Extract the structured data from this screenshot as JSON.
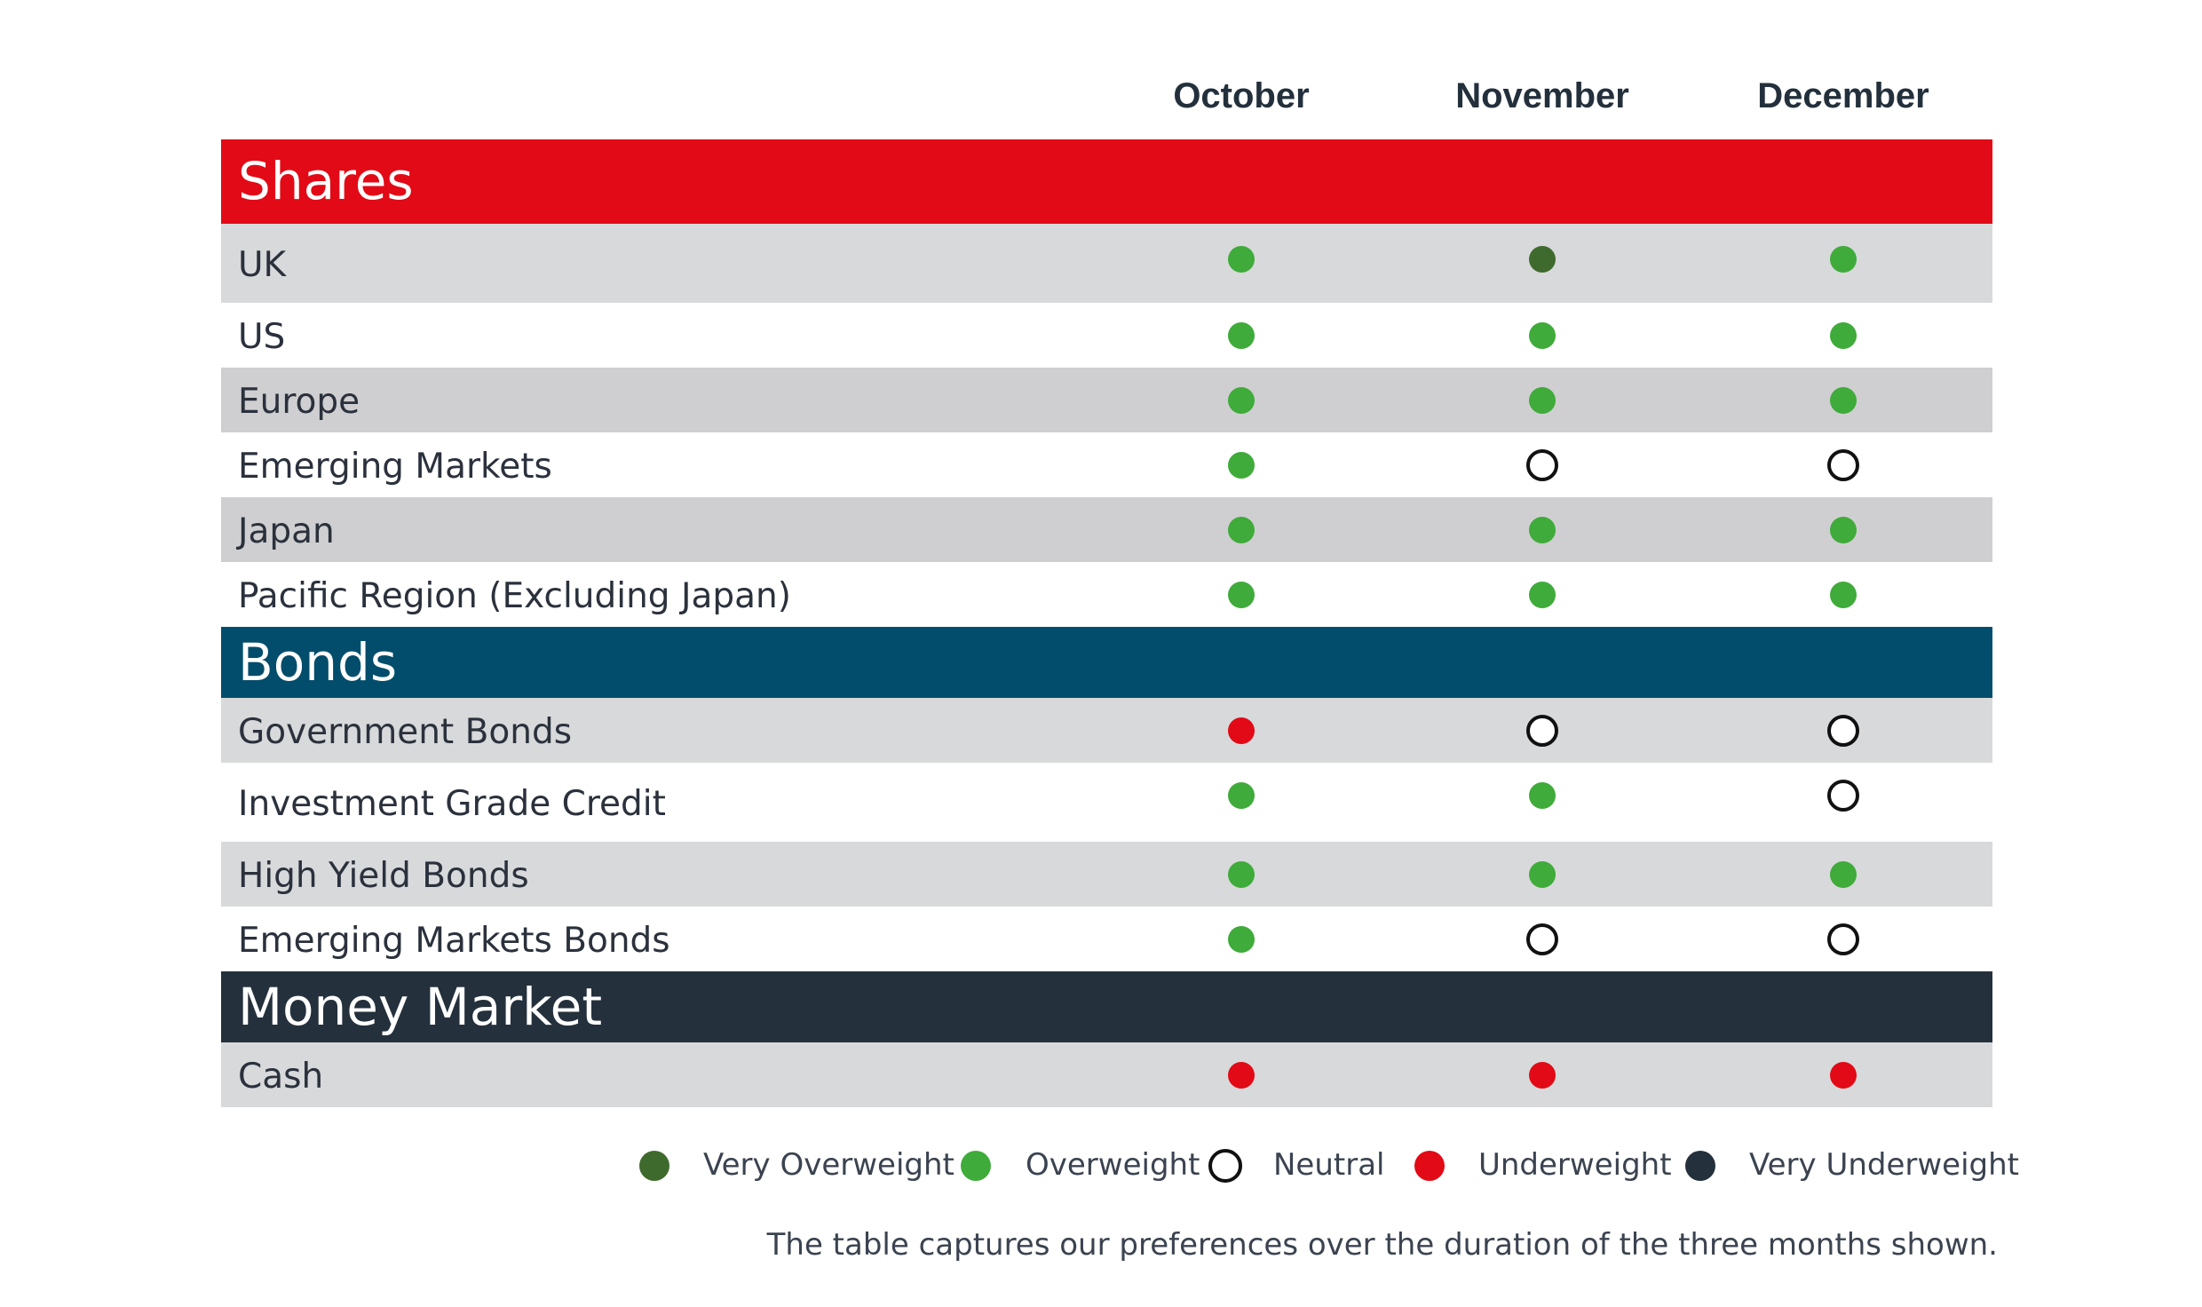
{
  "chart_data": {
    "type": "table",
    "columns": [
      "October",
      "November",
      "December"
    ],
    "ratings": {
      "very_overweight": "Very Overweight",
      "overweight": "Overweight",
      "neutral": "Neutral",
      "underweight": "Underweight",
      "very_underweight": "Very Underweight"
    },
    "colors": {
      "very_overweight": "#3f6a2d",
      "overweight": "#3fab3a",
      "neutral": "#ffffff",
      "underweight": "#e20a16",
      "very_underweight": "#24303c"
    },
    "sections": [
      {
        "name": "Shares",
        "color": "#e20a16",
        "rows": [
          {
            "label": "UK",
            "values": [
              "overweight",
              "very_overweight",
              "overweight"
            ]
          },
          {
            "label": "US",
            "values": [
              "overweight",
              "overweight",
              "overweight"
            ]
          },
          {
            "label": "Europe",
            "values": [
              "overweight",
              "overweight",
              "overweight"
            ]
          },
          {
            "label": "Emerging Markets",
            "values": [
              "overweight",
              "neutral",
              "neutral"
            ]
          },
          {
            "label": "Japan",
            "values": [
              "overweight",
              "overweight",
              "overweight"
            ]
          },
          {
            "label": "Pacific Region (Excluding Japan)",
            "values": [
              "overweight",
              "overweight",
              "overweight"
            ]
          }
        ]
      },
      {
        "name": "Bonds",
        "color": "#024d6b",
        "rows": [
          {
            "label": "Government Bonds",
            "values": [
              "underweight",
              "neutral",
              "neutral"
            ]
          },
          {
            "label": "Investment Grade Credit",
            "values": [
              "overweight",
              "overweight",
              "neutral"
            ]
          },
          {
            "label": "High Yield Bonds",
            "values": [
              "overweight",
              "overweight",
              "overweight"
            ]
          },
          {
            "label": "Emerging Markets Bonds",
            "values": [
              "overweight",
              "neutral",
              "neutral"
            ]
          }
        ]
      },
      {
        "name": "Money Market",
        "color": "#24303c",
        "rows": [
          {
            "label": "Cash",
            "values": [
              "underweight",
              "underweight",
              "underweight"
            ]
          }
        ]
      }
    ],
    "legend": [
      "very_overweight",
      "overweight",
      "neutral",
      "underweight",
      "very_underweight"
    ],
    "note": "The table captures our preferences over the duration of the three months shown."
  }
}
